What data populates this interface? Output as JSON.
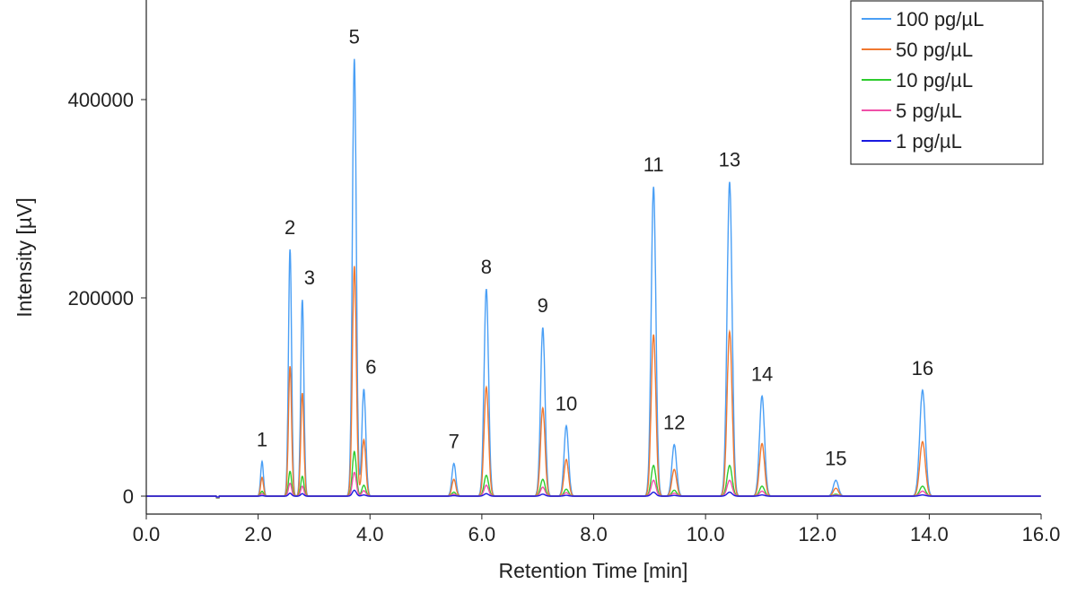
{
  "chart_data": {
    "type": "line",
    "title": "",
    "xlabel": "Retention Time [min]",
    "ylabel": "Intensity [µV]",
    "xlim": [
      0,
      16
    ],
    "ylim": [
      -18000,
      500000
    ],
    "x_ticks": [
      0,
      2,
      4,
      6,
      8,
      10,
      12,
      14,
      16
    ],
    "x_tick_labels": [
      "0.0",
      "2.0",
      "4.0",
      "6.0",
      "8.0",
      "10.0",
      "12.0",
      "14.0",
      "16.0"
    ],
    "y_ticks": [
      0,
      200000,
      400000
    ],
    "y_tick_labels": [
      "0",
      "200000",
      "400000"
    ],
    "grid": false,
    "legend_position": "top-right",
    "peaks": [
      {
        "label": "1",
        "rt": 2.07,
        "width": 0.025
      },
      {
        "label": "2",
        "rt": 2.57,
        "width": 0.028
      },
      {
        "label": "3",
        "rt": 2.79,
        "width": 0.028
      },
      {
        "label": "5",
        "rt": 3.72,
        "width": 0.035
      },
      {
        "label": "6",
        "rt": 3.89,
        "width": 0.035
      },
      {
        "label": "7",
        "rt": 5.5,
        "width": 0.035
      },
      {
        "label": "8",
        "rt": 6.08,
        "width": 0.04
      },
      {
        "label": "9",
        "rt": 7.09,
        "width": 0.04
      },
      {
        "label": "10",
        "rt": 7.51,
        "width": 0.04
      },
      {
        "label": "11",
        "rt": 9.07,
        "width": 0.042
      },
      {
        "label": "12",
        "rt": 9.44,
        "width": 0.042
      },
      {
        "label": "13",
        "rt": 10.43,
        "width": 0.045
      },
      {
        "label": "14",
        "rt": 11.01,
        "width": 0.045
      },
      {
        "label": "15",
        "rt": 12.33,
        "width": 0.045
      },
      {
        "label": "16",
        "rt": 13.88,
        "width": 0.05
      }
    ],
    "series": [
      {
        "name": "100 pg/µL",
        "color": "#4a9ff5",
        "heights": [
          35000,
          249000,
          198000,
          441000,
          108000,
          33000,
          209000,
          170000,
          71000,
          312000,
          52000,
          317000,
          101000,
          16000,
          107000
        ]
      },
      {
        "name": "50 pg/µL",
        "color": "#f07830",
        "heights": [
          19000,
          131000,
          104000,
          232000,
          57000,
          17000,
          110000,
          89000,
          37000,
          163000,
          27000,
          166000,
          53000,
          8000,
          55000
        ]
      },
      {
        "name": "10 pg/µL",
        "color": "#2ecc2e",
        "heights": [
          5000,
          25000,
          20000,
          45000,
          11000,
          4000,
          21000,
          17000,
          7000,
          31000,
          6000,
          31000,
          10000,
          2000,
          10000
        ]
      },
      {
        "name": "5 pg/µL",
        "color": "#f050a8",
        "heights": [
          2500,
          13000,
          10000,
          24000,
          5500,
          2000,
          11000,
          9000,
          3500,
          16000,
          3000,
          16000,
          5000,
          1000,
          5000
        ]
      },
      {
        "name": "1 pg/µL",
        "color": "#1a1ae0",
        "heights": [
          500,
          3000,
          2500,
          6000,
          1200,
          500,
          2500,
          2000,
          800,
          4000,
          700,
          4000,
          1200,
          200,
          1200
        ]
      }
    ]
  }
}
